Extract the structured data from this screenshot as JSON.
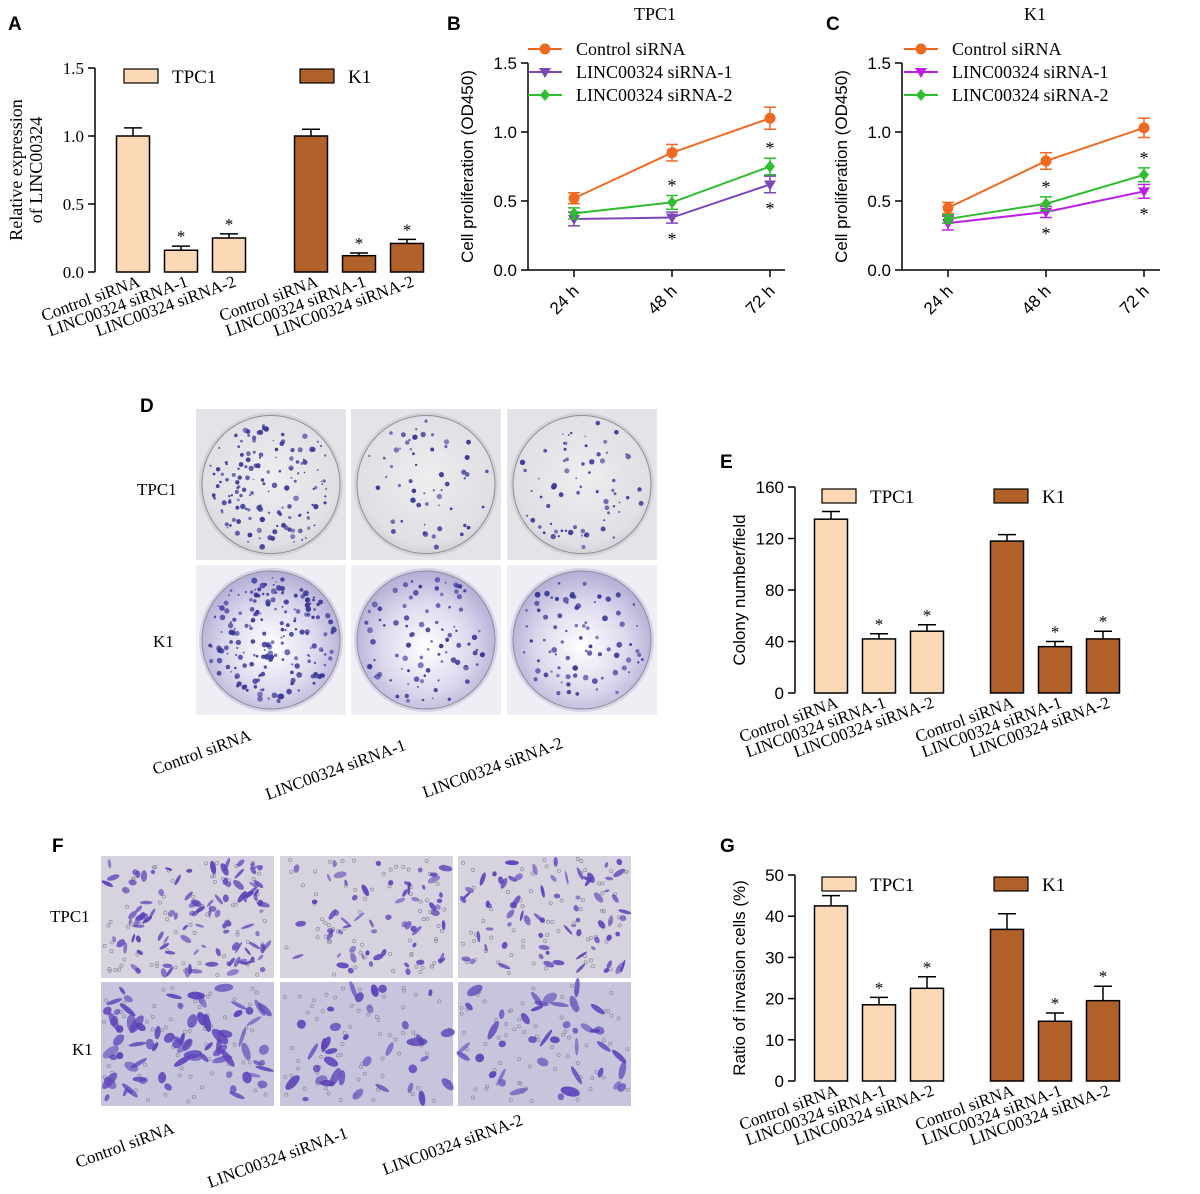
{
  "figure": {
    "panel_labels": [
      "A",
      "B",
      "C",
      "D",
      "E",
      "F",
      "G"
    ],
    "groups": [
      "Control siRNA",
      "LINC00324 siRNA-1",
      "LINC00324 siRNA-2"
    ],
    "row_labels": [
      "TPC1",
      "K1"
    ],
    "colors": {
      "tpc1_bar": "#fbd8b6",
      "k1_bar": "#b0612a",
      "control_line": "#ee6a23",
      "sirna1_line_b": "#7b48b5",
      "sirna1_line_c": "#bd1fe6",
      "sirna2_line": "#2fbd2f",
      "dish_stain": "#3c3a99",
      "cell_stain": "#5b40b8"
    }
  },
  "chart_data": [
    {
      "panel": "A",
      "type": "bar",
      "title": "",
      "xlabel": "",
      "ylabel": "Relative expression of LINC00324",
      "ylabel_lines": [
        "Relative expression",
        "of LINC00324"
      ],
      "ylim": [
        0,
        1.5
      ],
      "yticks": [
        "0.0",
        "0.5",
        "1.0",
        "1.5"
      ],
      "categories": [
        "Control siRNA",
        "LINC00324 siRNA-1",
        "LINC00324 siRNA-2"
      ],
      "series": [
        {
          "name": "TPC1",
          "values": [
            1.0,
            0.16,
            0.25
          ],
          "errors": [
            0.06,
            0.03,
            0.03
          ],
          "significant": [
            false,
            true,
            true
          ]
        },
        {
          "name": "K1",
          "values": [
            1.0,
            0.12,
            0.21
          ],
          "errors": [
            0.05,
            0.02,
            0.03
          ],
          "significant": [
            false,
            true,
            true
          ]
        }
      ],
      "legend": "top",
      "grid": false
    },
    {
      "panel": "B",
      "type": "line",
      "title": "TPC1",
      "xlabel": "",
      "ylabel": "Cell proliferation (OD450)",
      "ylim": [
        0,
        1.5
      ],
      "yticks": [
        "0.0",
        "0.5",
        "1.0",
        "1.5"
      ],
      "x": [
        "24 h",
        "48 h",
        "72 h"
      ],
      "series": [
        {
          "name": "Control siRNA",
          "values": [
            0.52,
            0.85,
            1.1
          ],
          "errors": [
            0.04,
            0.06,
            0.08
          ],
          "marker": "circle"
        },
        {
          "name": "LINC00324 siRNA-1",
          "values": [
            0.37,
            0.38,
            0.62
          ],
          "errors": [
            0.05,
            0.04,
            0.06
          ],
          "marker": "triangle-down",
          "significant": [
            false,
            true,
            true
          ]
        },
        {
          "name": "LINC00324 siRNA-2",
          "values": [
            0.41,
            0.49,
            0.75
          ],
          "errors": [
            0.04,
            0.05,
            0.06
          ],
          "marker": "diamond",
          "significant": [
            false,
            true,
            true
          ]
        }
      ],
      "legend": "top-left",
      "grid": false
    },
    {
      "panel": "C",
      "type": "line",
      "title": "K1",
      "xlabel": "",
      "ylabel": "Cell proliferation (OD450)",
      "ylim": [
        0,
        1.5
      ],
      "yticks": [
        "0.0",
        "0.5",
        "1.0",
        "1.5"
      ],
      "x": [
        "24 h",
        "48 h",
        "72 h"
      ],
      "series": [
        {
          "name": "Control siRNA",
          "values": [
            0.45,
            0.79,
            1.03
          ],
          "errors": [
            0.04,
            0.06,
            0.07
          ],
          "marker": "circle"
        },
        {
          "name": "LINC00324 siRNA-1",
          "values": [
            0.34,
            0.42,
            0.57
          ],
          "errors": [
            0.05,
            0.04,
            0.05
          ],
          "marker": "triangle-down",
          "significant": [
            false,
            true,
            true
          ]
        },
        {
          "name": "LINC00324 siRNA-2",
          "values": [
            0.37,
            0.48,
            0.69
          ],
          "errors": [
            0.03,
            0.05,
            0.05
          ],
          "marker": "diamond",
          "significant": [
            false,
            true,
            true
          ]
        }
      ],
      "legend": "top-left",
      "grid": false
    },
    {
      "panel": "E",
      "type": "bar",
      "title": "",
      "xlabel": "",
      "ylabel": "Colony number/field",
      "ylim": [
        0,
        160
      ],
      "yticks": [
        "0",
        "40",
        "80",
        "120",
        "160"
      ],
      "categories": [
        "Control siRNA",
        "LINC00324 siRNA-1",
        "LINC00324 siRNA-2"
      ],
      "series": [
        {
          "name": "TPC1",
          "values": [
            135,
            42,
            48
          ],
          "errors": [
            6,
            4,
            5
          ],
          "significant": [
            false,
            true,
            true
          ]
        },
        {
          "name": "K1",
          "values": [
            118,
            36,
            42
          ],
          "errors": [
            5,
            4,
            6
          ],
          "significant": [
            false,
            true,
            true
          ]
        }
      ],
      "legend": "top",
      "grid": false
    },
    {
      "panel": "G",
      "type": "bar",
      "title": "",
      "xlabel": "",
      "ylabel": "Ratio of invasion cells (%)",
      "ylim": [
        0,
        50
      ],
      "yticks": [
        "0",
        "10",
        "20",
        "30",
        "40",
        "50"
      ],
      "categories": [
        "Control siRNA",
        "LINC00324 siRNA-1",
        "LINC00324 siRNA-2"
      ],
      "series": [
        {
          "name": "TPC1",
          "values": [
            42.5,
            18.5,
            22.5
          ],
          "errors": [
            2.5,
            1.8,
            2.8
          ],
          "significant": [
            false,
            true,
            true
          ]
        },
        {
          "name": "K1",
          "values": [
            36.8,
            14.5,
            19.5
          ],
          "errors": [
            3.8,
            2.0,
            3.5
          ],
          "significant": [
            false,
            true,
            true
          ]
        }
      ],
      "legend": "top",
      "grid": false
    }
  ]
}
